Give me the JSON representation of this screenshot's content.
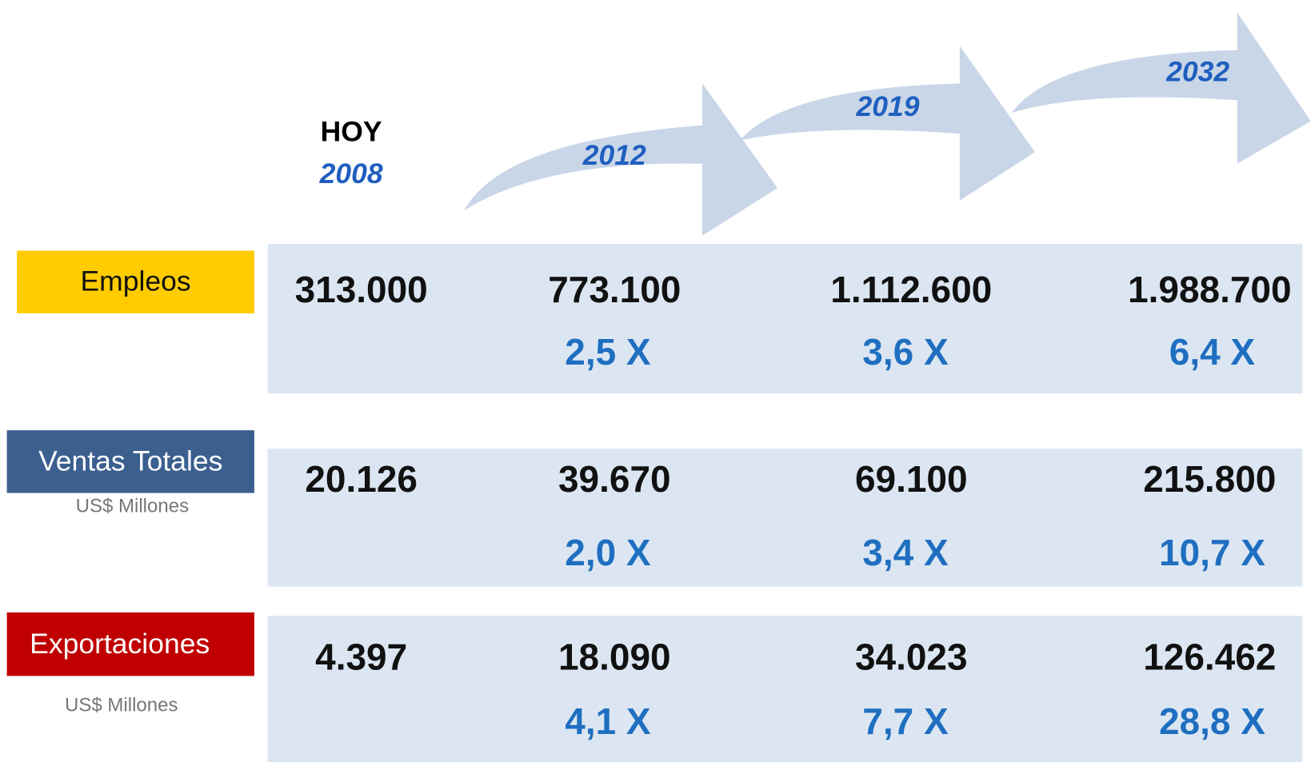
{
  "header": {
    "today": "HOY",
    "years": [
      "2008",
      "2012",
      "2019",
      "2032"
    ]
  },
  "rows": [
    {
      "label": "Empleos",
      "values": [
        "313.000",
        "773.100",
        "1.112.600",
        "1.988.700"
      ],
      "multipliers": [
        "2,5 X",
        "3,6 X",
        "6,4 X"
      ]
    },
    {
      "label": "Ventas Totales",
      "unit": "US$ Millones",
      "values": [
        "20.126",
        "39.670",
        "69.100",
        "215.800"
      ],
      "multipliers": [
        "2,0 X",
        "3,4 X",
        "10,7 X"
      ]
    },
    {
      "label": "Exportaciones",
      "unit": "US$ Millones",
      "values": [
        "4.397",
        "18.090",
        "34.023",
        "126.462"
      ],
      "multipliers": [
        "4,1 X",
        "7,7 X",
        "28,8 X"
      ]
    }
  ]
}
